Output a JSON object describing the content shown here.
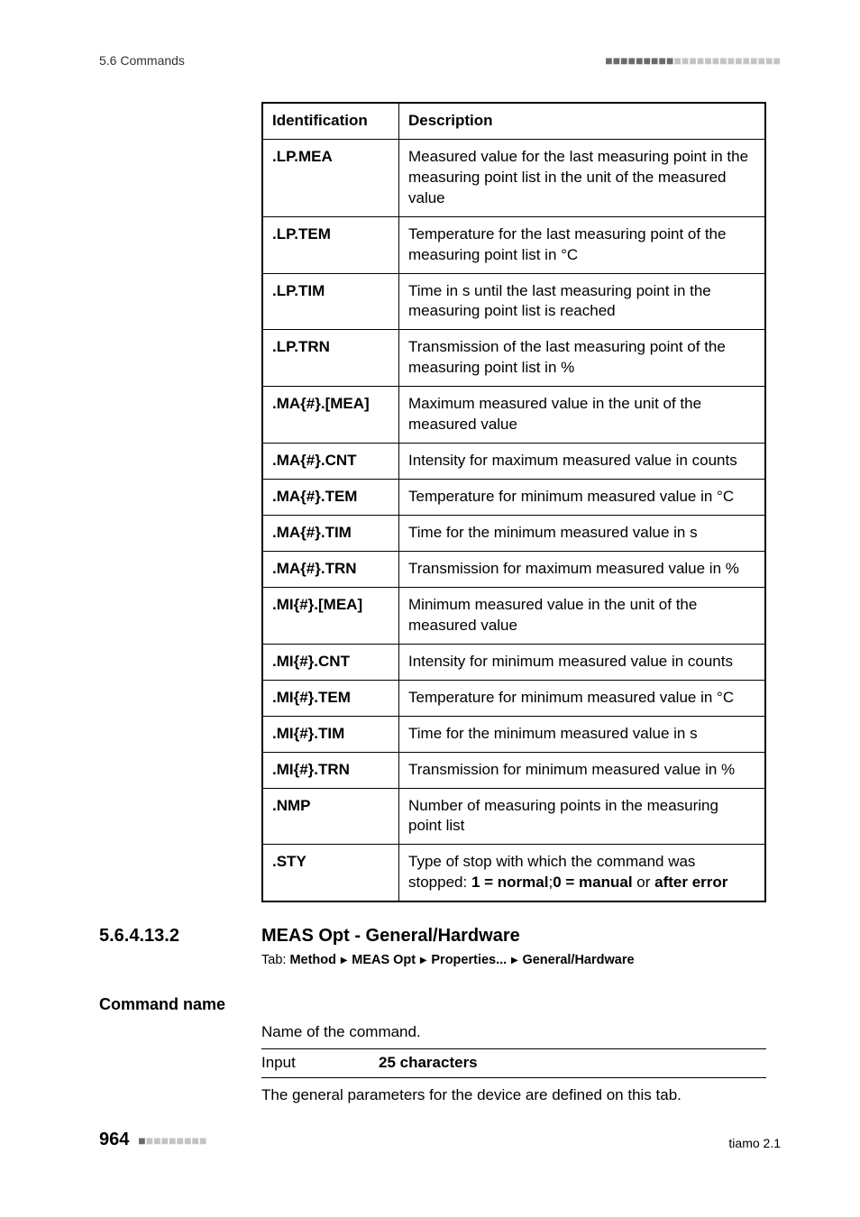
{
  "header": {
    "section_ref": "5.6 Commands"
  },
  "dots": {
    "dark_count": 9,
    "light_count": 14
  },
  "table": {
    "headers": [
      "Identification",
      "Description"
    ],
    "rows": [
      {
        "id": ".LP.MEA",
        "desc": "Measured value for the last measuring point in the measuring point list in the unit of the measured value"
      },
      {
        "id": ".LP.TEM",
        "desc": "Temperature for the last measuring point of the measuring point list in °C"
      },
      {
        "id": ".LP.TIM",
        "desc": "Time in s until the last measuring point in the measuring point list is reached"
      },
      {
        "id": ".LP.TRN",
        "desc": "Transmission of the last measuring point of the measuring point list in %"
      },
      {
        "id": ".MA{#}.[MEA]",
        "desc": "Maximum measured value in the unit of the measured value"
      },
      {
        "id": ".MA{#}.CNT",
        "desc": "Intensity for maximum measured value in counts"
      },
      {
        "id": ".MA{#}.TEM",
        "desc": "Temperature for minimum measured value in °C"
      },
      {
        "id": ".MA{#}.TIM",
        "desc": "Time for the minimum measured value in s"
      },
      {
        "id": ".MA{#}.TRN",
        "desc": "Transmission for maximum measured value in %"
      },
      {
        "id": ".MI{#}.[MEA]",
        "desc": "Minimum measured value in the unit of the measured value"
      },
      {
        "id": ".MI{#}.CNT",
        "desc": "Intensity for minimum measured value in counts"
      },
      {
        "id": ".MI{#}.TEM",
        "desc": "Temperature for minimum measured value in °C"
      },
      {
        "id": ".MI{#}.TIM",
        "desc": "Time for the minimum measured value in s"
      },
      {
        "id": ".MI{#}.TRN",
        "desc": "Transmission for minimum measured value in %"
      },
      {
        "id": ".NMP",
        "desc": "Number of measuring points in the measuring point list"
      },
      {
        "id": ".STY",
        "desc_html": "Type of stop with which the command was stopped: <b>1 = normal</b>;<b>0 = manual</b> or <b>after error</b>"
      }
    ]
  },
  "section": {
    "number": "5.6.4.13.2",
    "title": "MEAS Opt - General/Hardware",
    "tab_path": [
      "Method",
      "MEAS Opt",
      "Properties...",
      "General/Hardware"
    ]
  },
  "field": {
    "label": "Command name",
    "desc": "Name of the command.",
    "input_label": "Input",
    "input_value": "25 characters",
    "note": "The general parameters for the device are defined on this tab."
  },
  "footer": {
    "page": "964",
    "product": "tiamo 2.1"
  }
}
